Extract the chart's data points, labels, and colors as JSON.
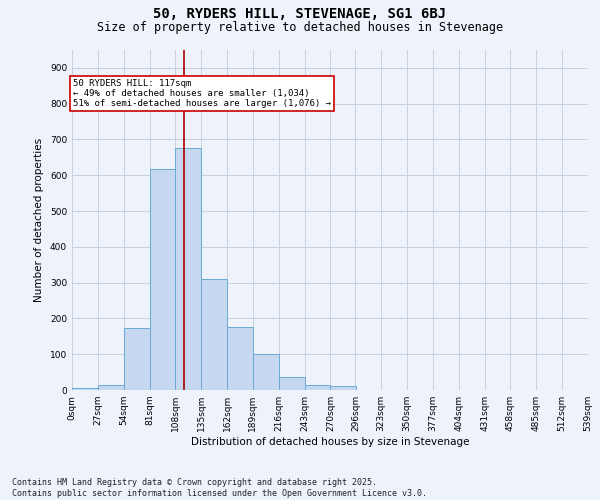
{
  "title1": "50, RYDERS HILL, STEVENAGE, SG1 6BJ",
  "title2": "Size of property relative to detached houses in Stevenage",
  "xlabel": "Distribution of detached houses by size in Stevenage",
  "ylabel": "Number of detached properties",
  "bin_edges": [
    0,
    27,
    54,
    81,
    108,
    135,
    162,
    189,
    216,
    243,
    270,
    296,
    323,
    350,
    377,
    404,
    431,
    458,
    485,
    512,
    539
  ],
  "bar_heights": [
    5,
    13,
    173,
    617,
    675,
    310,
    177,
    100,
    37,
    13,
    10,
    0,
    0,
    0,
    0,
    0,
    0,
    0,
    0,
    0
  ],
  "bar_color": "#c5d8f0",
  "bar_edge_color": "#6aaad4",
  "vline_x": 117,
  "vline_color": "#aa0000",
  "annotation_box_color": "#cc0000",
  "annotation_text": "50 RYDERS HILL: 117sqm\n← 49% of detached houses are smaller (1,034)\n51% of semi-detached houses are larger (1,076) →",
  "ylim": [
    0,
    950
  ],
  "yticks": [
    0,
    100,
    200,
    300,
    400,
    500,
    600,
    700,
    800,
    900
  ],
  "tick_labels": [
    "0sqm",
    "27sqm",
    "54sqm",
    "81sqm",
    "108sqm",
    "135sqm",
    "162sqm",
    "189sqm",
    "216sqm",
    "243sqm",
    "270sqm",
    "296sqm",
    "323sqm",
    "350sqm",
    "377sqm",
    "404sqm",
    "431sqm",
    "458sqm",
    "485sqm",
    "512sqm",
    "539sqm"
  ],
  "footer": "Contains HM Land Registry data © Crown copyright and database right 2025.\nContains public sector information licensed under the Open Government Licence v3.0.",
  "bg_color": "#eef2fb",
  "grid_color": "#c8cfe0",
  "title_fontsize": 10,
  "subtitle_fontsize": 8.5,
  "axis_label_fontsize": 7.5,
  "tick_fontsize": 6.5,
  "footer_fontsize": 6,
  "annot_fontsize": 6.5
}
